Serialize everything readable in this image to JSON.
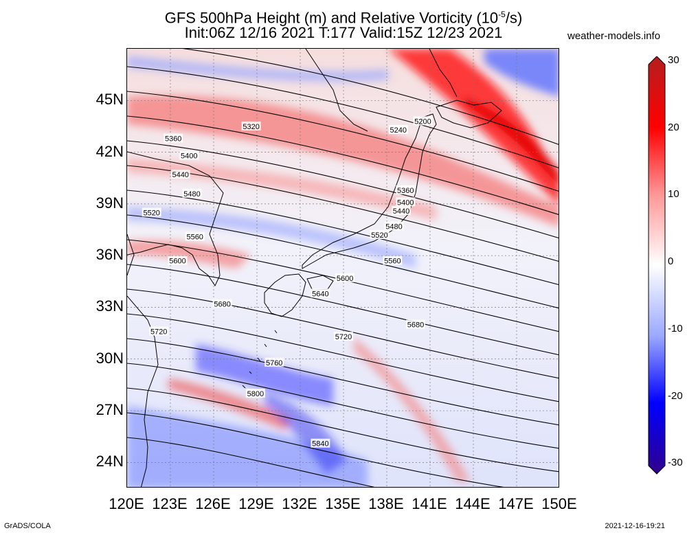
{
  "header": {
    "title_line1": "GFS 500hPa Height (m) and Relative Vorticity (10",
    "title_exp": "-5",
    "title_unit": "/s)",
    "title_line2": "Init:06Z 12/16 2021 T:177 Valid:15Z 12/23 2021",
    "site": "weather-models.info"
  },
  "footer": {
    "left": "GrADS/COLA",
    "right": "2021-12-16-19:21"
  },
  "map": {
    "lat_labels": [
      "45N",
      "42N",
      "39N",
      "36N",
      "33N",
      "30N",
      "27N",
      "24N"
    ],
    "lon_labels": [
      "120E",
      "123E",
      "126E",
      "129E",
      "132E",
      "135E",
      "138E",
      "141E",
      "144E",
      "147E",
      "150E"
    ],
    "contour_labels": [
      {
        "value": "5200",
        "lon": 140.5,
        "lat": 43.8
      },
      {
        "value": "5240",
        "lon": 138.8,
        "lat": 43.3
      },
      {
        "value": "5320",
        "lon": 128.6,
        "lat": 43.5
      },
      {
        "value": "5360",
        "lon": 123.2,
        "lat": 42.8
      },
      {
        "value": "5400",
        "lon": 124.3,
        "lat": 41.8
      },
      {
        "value": "5440",
        "lon": 123.7,
        "lat": 40.7
      },
      {
        "value": "5480",
        "lon": 124.5,
        "lat": 39.6
      },
      {
        "value": "5520",
        "lon": 121.7,
        "lat": 38.5
      },
      {
        "value": "5560",
        "lon": 124.7,
        "lat": 37.1
      },
      {
        "value": "5600",
        "lon": 123.5,
        "lat": 35.7
      },
      {
        "value": "5680",
        "lon": 126.6,
        "lat": 33.2
      },
      {
        "value": "5720",
        "lon": 122.2,
        "lat": 31.6
      },
      {
        "value": "5760",
        "lon": 130.2,
        "lat": 29.8
      },
      {
        "value": "5800",
        "lon": 128.9,
        "lat": 28.0
      },
      {
        "value": "5840",
        "lon": 133.4,
        "lat": 25.1
      },
      {
        "value": "5640",
        "lon": 133.4,
        "lat": 33.8
      },
      {
        "value": "5600",
        "lon": 135.1,
        "lat": 34.7
      },
      {
        "value": "5560",
        "lon": 138.4,
        "lat": 35.7
      },
      {
        "value": "5520",
        "lon": 137.5,
        "lat": 37.2
      },
      {
        "value": "5480",
        "lon": 138.5,
        "lat": 37.7
      },
      {
        "value": "5440",
        "lon": 139.0,
        "lat": 38.6
      },
      {
        "value": "5400",
        "lon": 139.3,
        "lat": 39.1
      },
      {
        "value": "5360",
        "lon": 139.3,
        "lat": 39.8
      },
      {
        "value": "5720",
        "lon": 135.0,
        "lat": 31.3
      },
      {
        "value": "5680",
        "lon": 140.0,
        "lat": 32.0
      }
    ]
  },
  "colorbar": {
    "ticks": [
      "30",
      "20",
      "10",
      "0",
      "-10",
      "-20",
      "-30"
    ],
    "colors": {
      "max": "#b41e1e",
      "high": "#ff0000",
      "mid_high": "#ff9696",
      "zero": "#ffffff",
      "mid_low": "#9aa8ff",
      "low": "#0000ff",
      "min": "#30008c"
    }
  }
}
